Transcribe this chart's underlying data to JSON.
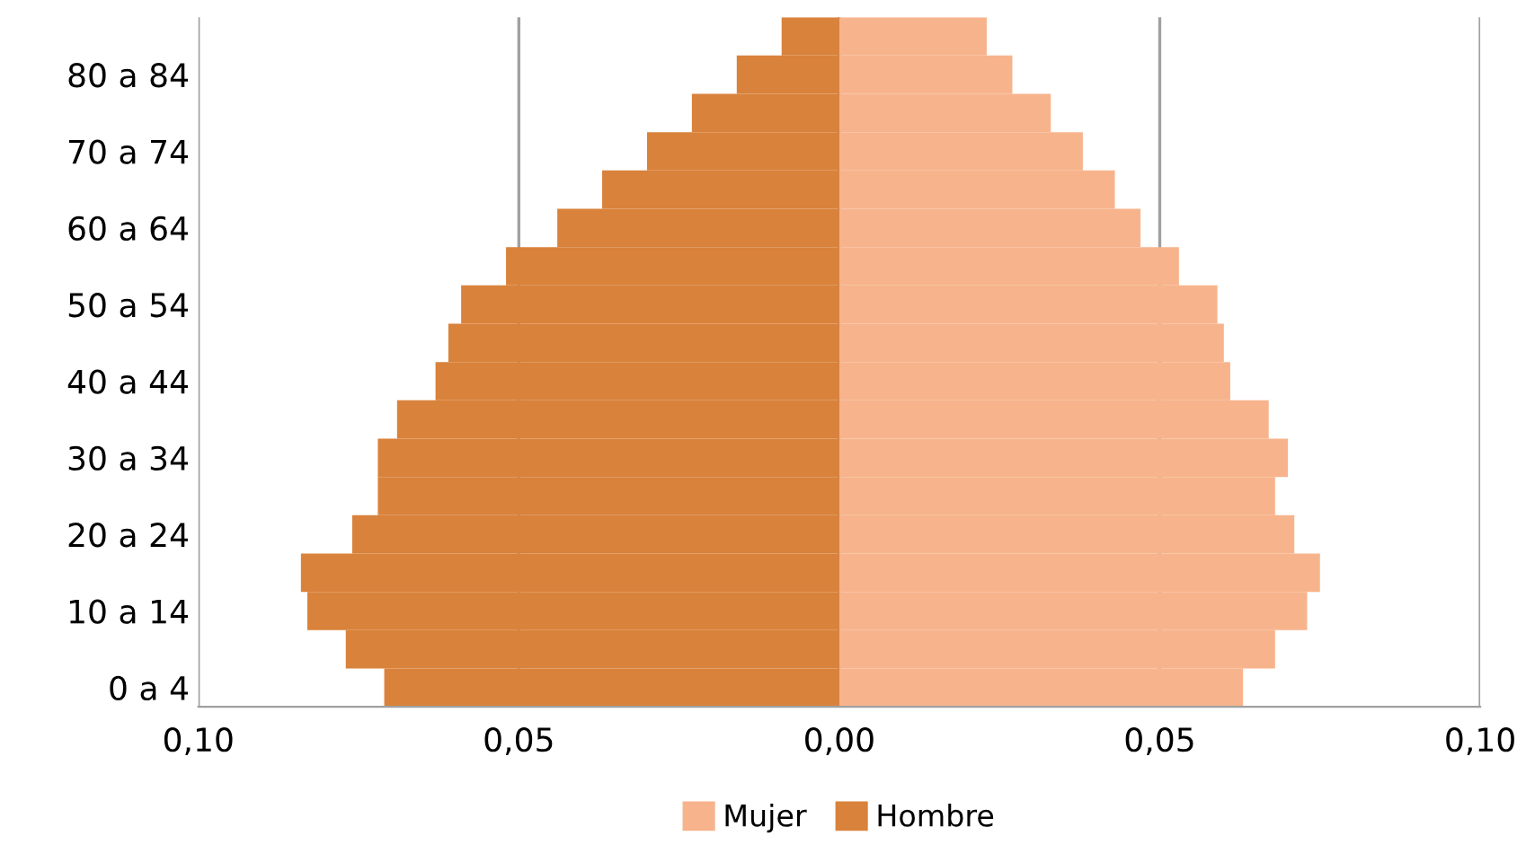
{
  "chart_data": {
    "type": "bar",
    "orientation": "horizontal",
    "categories": [
      null,
      "80 a 84",
      null,
      "70 a 74",
      null,
      "60 a 64",
      null,
      "50 a 54",
      null,
      "40 a 44",
      null,
      "30 a 34",
      null,
      "20 a 24",
      null,
      "10 a 14",
      null,
      "0 a 4"
    ],
    "series": [
      {
        "name": "Mujer",
        "color": "#f7b48c",
        "values": [
          0.023,
          0.027,
          0.033,
          0.038,
          0.043,
          0.047,
          0.053,
          0.059,
          0.06,
          0.061,
          0.067,
          0.07,
          0.068,
          0.071,
          0.075,
          0.073,
          0.068,
          0.063
        ]
      },
      {
        "name": "Hombre",
        "color": "#d9823b",
        "values": [
          -0.009,
          -0.016,
          -0.023,
          -0.03,
          -0.037,
          -0.044,
          -0.052,
          -0.059,
          -0.061,
          -0.063,
          -0.069,
          -0.072,
          -0.072,
          -0.076,
          -0.084,
          -0.083,
          -0.077,
          -0.071
        ]
      }
    ],
    "xlim": [
      -0.1,
      0.1
    ],
    "xticks": [
      {
        "value": -0.1,
        "label": "0,10"
      },
      {
        "value": -0.05,
        "label": "0,05"
      },
      {
        "value": 0,
        "label": "0,00"
      },
      {
        "value": 0.05,
        "label": "0,05"
      },
      {
        "value": 0.1,
        "label": "0,10"
      }
    ],
    "stacked": true,
    "grid": "x",
    "legend": "bottom"
  }
}
